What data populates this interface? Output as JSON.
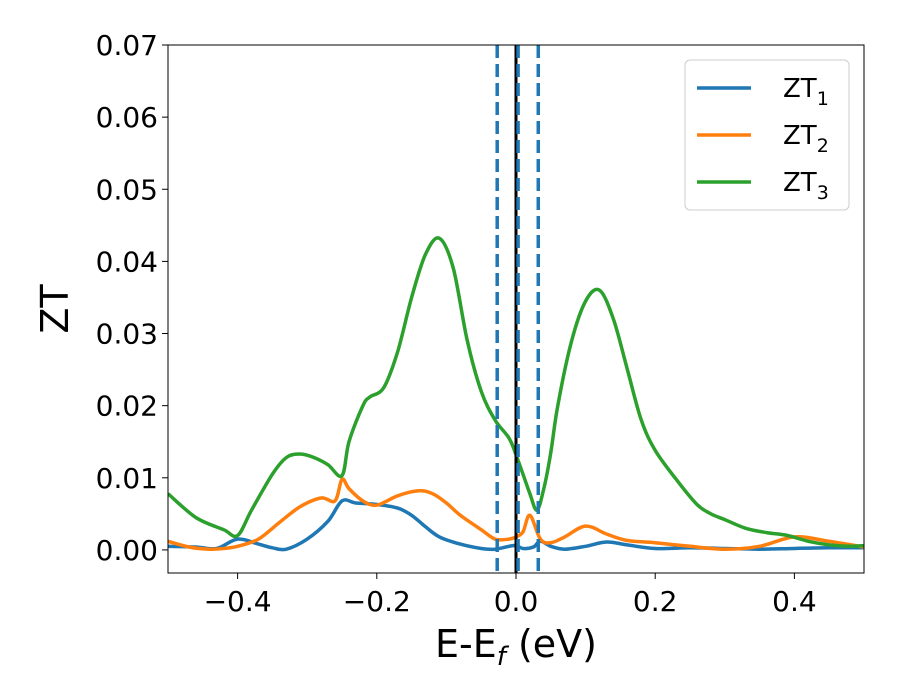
{
  "chart_data": {
    "type": "line",
    "xlabel": {
      "main": "E-E",
      "sub": "f",
      "unit": " (eV)"
    },
    "ylabel": "ZT",
    "xlim": [
      -0.5,
      0.5
    ],
    "ylim": [
      -0.0032,
      0.07
    ],
    "x_ticks": [
      -0.4,
      -0.2,
      0.0,
      0.2,
      0.4
    ],
    "x_tick_labels": [
      "−0.4",
      "−0.2",
      "0.0",
      "0.2",
      "0.4"
    ],
    "y_ticks": [
      0.0,
      0.01,
      0.02,
      0.03,
      0.04,
      0.05,
      0.06,
      0.07
    ],
    "y_tick_labels": [
      "0.00",
      "0.01",
      "0.02",
      "0.03",
      "0.04",
      "0.05",
      "0.06",
      "0.07"
    ],
    "grid": false,
    "legend_position": "top-right",
    "vertical_lines": [
      {
        "x": 0.0,
        "style": "solid",
        "color": "#000000"
      },
      {
        "x": -0.027,
        "style": "dashed",
        "color": "#1f77b4"
      },
      {
        "x": 0.003,
        "style": "dashed",
        "color": "#1f77b4"
      },
      {
        "x": 0.032,
        "style": "dashed",
        "color": "#1f77b4"
      }
    ],
    "series": [
      {
        "name": "ZT",
        "name_sub": "1",
        "color": "#1f77b4",
        "x": [
          -0.5,
          -0.46,
          -0.43,
          -0.4,
          -0.37,
          -0.35,
          -0.33,
          -0.3,
          -0.27,
          -0.25,
          -0.23,
          -0.2,
          -0.17,
          -0.15,
          -0.13,
          -0.11,
          -0.08,
          -0.05,
          -0.03,
          -0.01,
          0.0,
          0.01,
          0.025,
          0.035,
          0.05,
          0.07,
          0.1,
          0.13,
          0.16,
          0.2,
          0.25,
          0.3,
          0.35,
          0.4,
          0.45,
          0.5
        ],
        "y": [
          0.0005,
          0.0004,
          0.0002,
          0.0015,
          0.0008,
          0.0003,
          0.0001,
          0.0015,
          0.004,
          0.0068,
          0.0065,
          0.0063,
          0.0058,
          0.0048,
          0.0032,
          0.0018,
          0.0008,
          0.0002,
          0.0001,
          0.0005,
          0.0006,
          0.0002,
          0.0004,
          0.0012,
          0.0005,
          0.0001,
          0.0005,
          0.0011,
          0.0007,
          0.0002,
          0.0003,
          0.0002,
          0.0001,
          0.0002,
          0.0003,
          0.0003
        ]
      },
      {
        "name": "ZT",
        "name_sub": "2",
        "color": "#ff7f0e",
        "x": [
          -0.5,
          -0.47,
          -0.44,
          -0.42,
          -0.4,
          -0.37,
          -0.34,
          -0.31,
          -0.28,
          -0.26,
          -0.25,
          -0.24,
          -0.22,
          -0.2,
          -0.17,
          -0.14,
          -0.12,
          -0.1,
          -0.08,
          -0.05,
          -0.03,
          -0.01,
          0.0,
          0.01,
          0.02,
          0.035,
          0.05,
          0.07,
          0.1,
          0.13,
          0.16,
          0.2,
          0.25,
          0.3,
          0.35,
          0.4,
          0.45,
          0.5
        ],
        "y": [
          0.0012,
          0.0004,
          0.0001,
          0.0002,
          0.0005,
          0.0015,
          0.0038,
          0.006,
          0.0072,
          0.0068,
          0.0098,
          0.0085,
          0.0068,
          0.0062,
          0.0075,
          0.0082,
          0.0078,
          0.0065,
          0.0048,
          0.0028,
          0.0015,
          0.0015,
          0.0018,
          0.0025,
          0.0048,
          0.0015,
          0.001,
          0.0018,
          0.0033,
          0.0022,
          0.0013,
          0.001,
          0.0005,
          0.0001,
          0.0005,
          0.0018,
          0.0012,
          0.0004
        ]
      },
      {
        "name": "ZT",
        "name_sub": "3",
        "color": "#2ca02c",
        "x": [
          -0.5,
          -0.46,
          -0.42,
          -0.4,
          -0.38,
          -0.35,
          -0.33,
          -0.31,
          -0.29,
          -0.27,
          -0.25,
          -0.24,
          -0.22,
          -0.21,
          -0.19,
          -0.17,
          -0.15,
          -0.13,
          -0.11,
          -0.09,
          -0.07,
          -0.05,
          -0.03,
          -0.01,
          0.0,
          0.01,
          0.02,
          0.03,
          0.04,
          0.05,
          0.06,
          0.08,
          0.1,
          0.12,
          0.14,
          0.16,
          0.18,
          0.2,
          0.23,
          0.26,
          0.28,
          0.3,
          0.33,
          0.36,
          0.39,
          0.42,
          0.45,
          0.48,
          0.5
        ],
        "y": [
          0.0078,
          0.0045,
          0.0028,
          0.002,
          0.0055,
          0.0105,
          0.0128,
          0.0133,
          0.0128,
          0.0118,
          0.0103,
          0.015,
          0.02,
          0.0212,
          0.0225,
          0.0275,
          0.035,
          0.041,
          0.0432,
          0.039,
          0.029,
          0.022,
          0.018,
          0.0155,
          0.0132,
          0.0105,
          0.0078,
          0.0055,
          0.0085,
          0.0135,
          0.02,
          0.029,
          0.0345,
          0.036,
          0.032,
          0.025,
          0.018,
          0.0138,
          0.0098,
          0.0063,
          0.005,
          0.0042,
          0.003,
          0.0024,
          0.002,
          0.0012,
          0.0007,
          0.0005,
          0.0006
        ]
      }
    ]
  }
}
